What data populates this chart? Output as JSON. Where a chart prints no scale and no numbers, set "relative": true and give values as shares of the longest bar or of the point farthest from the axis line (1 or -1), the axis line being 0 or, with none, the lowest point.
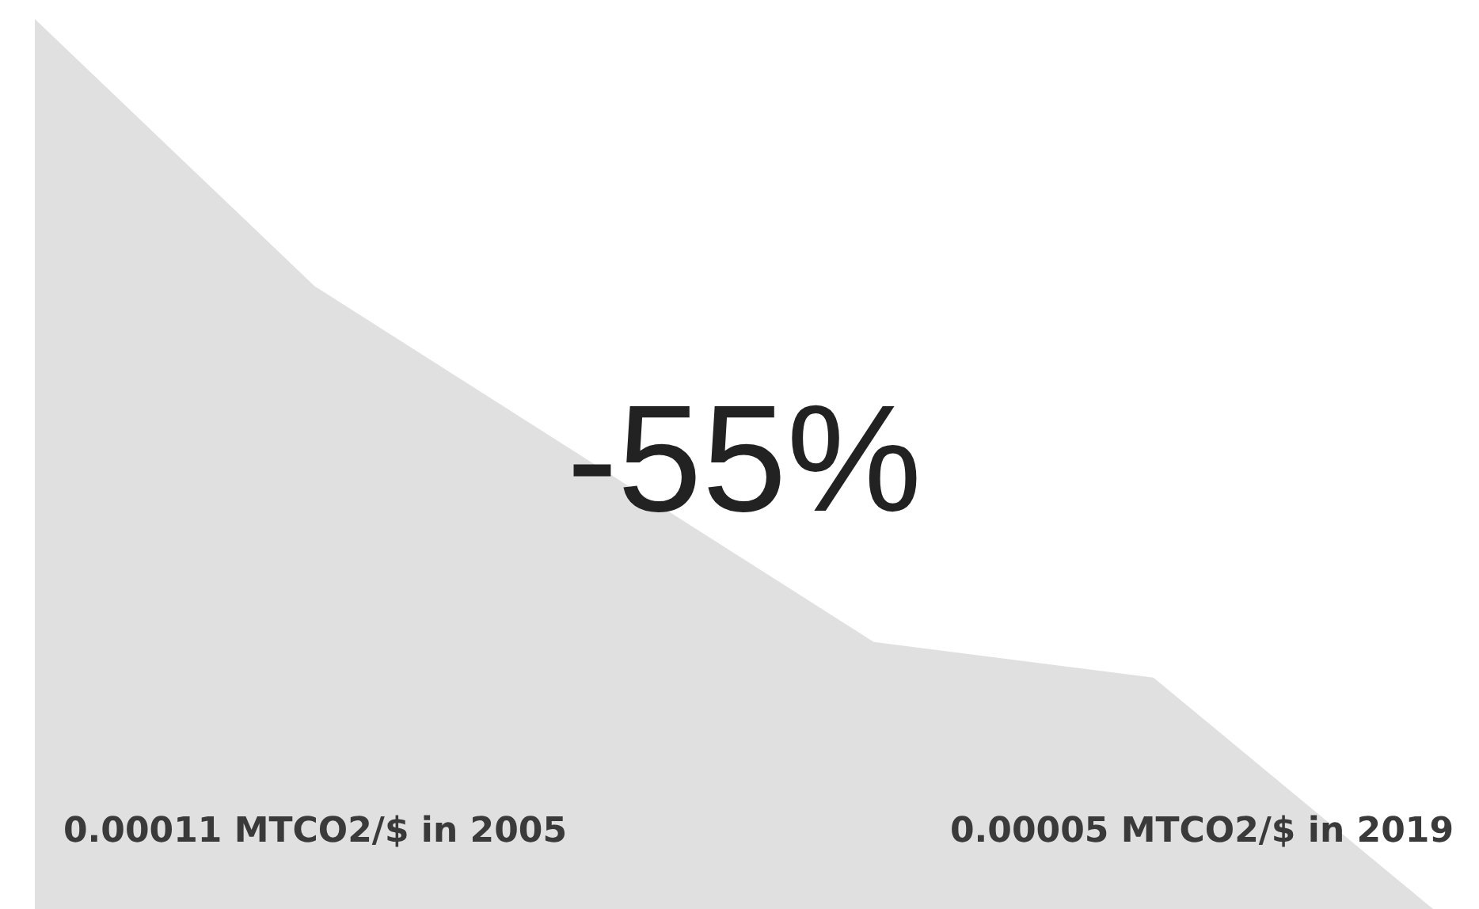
{
  "chart_data": {
    "type": "area",
    "relative": true,
    "categories": [
      null,
      null,
      null,
      null,
      null,
      null
    ],
    "values": [
      1,
      0.7,
      0.5,
      0.3,
      0.26,
      0
    ],
    "color": "#e0e0e0",
    "annotations": [
      "-55%",
      "0.00011 MTCO2/$ in 2005",
      "0.00005 MTCO2/$ in 2019"
    ]
  }
}
